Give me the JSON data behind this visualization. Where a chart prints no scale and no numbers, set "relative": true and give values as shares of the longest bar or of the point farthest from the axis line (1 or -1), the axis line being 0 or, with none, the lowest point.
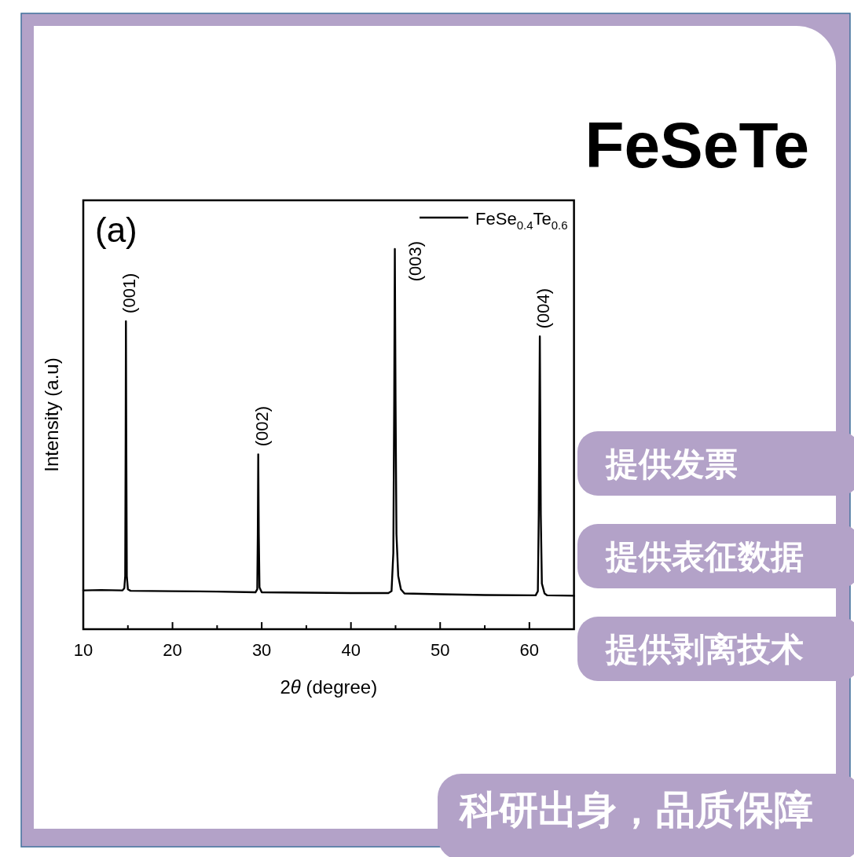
{
  "chart_data": {
    "type": "line",
    "title": "FeSeTe",
    "xlabel": "2θ (degree)",
    "ylabel": "Intensity (a.u)",
    "relative": true,
    "xlim": [
      10,
      65
    ],
    "xticks": [
      10,
      {
        "value": 15,
        "label": null
      },
      20,
      {
        "value": 25,
        "label": null
      },
      30,
      {
        "value": 35,
        "label": null
      },
      40,
      {
        "value": 45,
        "label": null
      },
      50,
      {
        "value": 55,
        "label": null
      },
      60
    ],
    "legend": "top right",
    "x": [
      10,
      12,
      14.4,
      14.6,
      14.7,
      14.75,
      14.78,
      14.82,
      14.88,
      15.0,
      15.3,
      20,
      25,
      29.3,
      29.5,
      29.56,
      29.61,
      29.67,
      29.75,
      30.0,
      35,
      40,
      44.2,
      44.55,
      44.75,
      44.85,
      44.92,
      45.0,
      45.1,
      45.3,
      45.6,
      46.0,
      50,
      55,
      60.7,
      60.95,
      61.05,
      61.17,
      61.28,
      61.4,
      61.7,
      62.0,
      65
    ],
    "series": [
      {
        "name": "FeSe$_{0.4}$Te$_{0.6}$",
        "color": "#000000",
        "values": [
          0.102,
          0.103,
          0.102,
          0.108,
          0.14,
          0.5,
          0.81,
          0.5,
          0.14,
          0.105,
          0.101,
          0.1,
          0.099,
          0.097,
          0.105,
          0.25,
          0.46,
          0.25,
          0.11,
          0.097,
          0.096,
          0.095,
          0.095,
          0.1,
          0.2,
          0.6,
          1.0,
          0.6,
          0.25,
          0.14,
          0.105,
          0.094,
          0.092,
          0.09,
          0.089,
          0.1,
          0.3,
          0.77,
          0.3,
          0.12,
          0.094,
          0.089,
          0.088
        ]
      }
    ],
    "annotations": [
      "(a)",
      {
        "text": "(001)",
        "x": 14.78,
        "y": 0.81
      },
      {
        "text": "(002)",
        "x": 29.61,
        "y": 0.46
      },
      {
        "text": "(003)",
        "x": 44.92,
        "y": 1.0
      },
      {
        "text": "(004)",
        "x": 61.17,
        "y": 0.77
      },
      "提供发票",
      "提供表征数据",
      "提供剥离技术",
      "科研出身，品质保障"
    ]
  }
}
